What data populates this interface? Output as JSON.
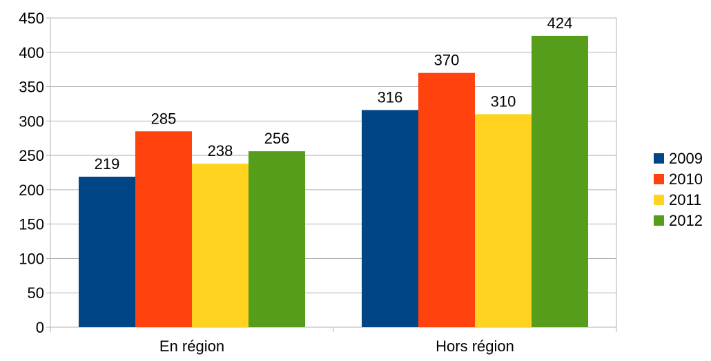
{
  "chart_data": {
    "type": "bar",
    "title": "",
    "xlabel": "",
    "ylabel": "",
    "categories": [
      "En région",
      "Hors région"
    ],
    "series": [
      {
        "name": "2009",
        "color": "#004586",
        "values": [
          219,
          316
        ]
      },
      {
        "name": "2010",
        "color": "#ff420e",
        "values": [
          285,
          370
        ]
      },
      {
        "name": "2011",
        "color": "#ffd320",
        "values": [
          238,
          310
        ]
      },
      {
        "name": "2012",
        "color": "#579d1c",
        "values": [
          256,
          424
        ]
      }
    ],
    "ylim": [
      0,
      450
    ],
    "yticks": [
      0,
      50,
      100,
      150,
      200,
      250,
      300,
      350,
      400,
      450
    ],
    "grid": true,
    "legend_position": "right",
    "data_labels": true
  }
}
